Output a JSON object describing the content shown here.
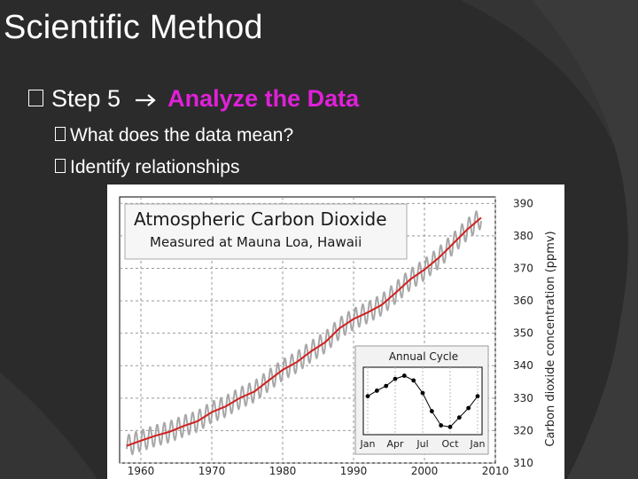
{
  "slide": {
    "title": "Scientific Method",
    "step_prefix": "Step 5",
    "arrow_icon": "right-arrow",
    "step_highlight": "Analyze the Data",
    "accent_color": "#e020d8",
    "sub_bullets": [
      "What does the data mean?",
      "Identify relationships"
    ]
  },
  "chart_data": [
    {
      "type": "line",
      "title": "Atmospheric Carbon Dioxide",
      "subtitle": "Measured at Mauna Loa, Hawaii",
      "ylabel": "Carbon dioxide concentration (ppmv)",
      "xlim": [
        1957,
        2010
      ],
      "ylim": [
        310,
        392
      ],
      "xticks": [
        "1960",
        "1970",
        "1980",
        "1990",
        "2000",
        "2010"
      ],
      "yticks": [
        "310",
        "320",
        "330",
        "340",
        "350",
        "360",
        "370",
        "380",
        "390"
      ],
      "grid": true,
      "series": [
        {
          "color": "#d02020",
          "x": [
            1958,
            1960,
            1962,
            1964,
            1966,
            1968,
            1970,
            1972,
            1974,
            1976,
            1978,
            1980,
            1982,
            1984,
            1986,
            1988,
            1990,
            1992,
            1994,
            1996,
            1998,
            2000,
            2002,
            2004,
            2006,
            2008
          ],
          "y": [
            315.3,
            316.9,
            318.4,
            319.6,
            321.4,
            322.9,
            325.7,
            327.5,
            330.1,
            332.0,
            335.4,
            338.7,
            341.1,
            344.4,
            347.2,
            351.5,
            354.4,
            356.4,
            358.8,
            362.6,
            366.6,
            369.6,
            373.2,
            377.5,
            381.9,
            385.6
          ]
        },
        {
          "color": "#a8a8a8",
          "seasonal_amplitude": 3.2
        }
      ]
    },
    {
      "type": "line",
      "title": "Annual Cycle",
      "xticks": [
        "Jan",
        "Apr",
        "Jul",
        "Oct",
        "Jan"
      ],
      "series": [
        {
          "color": "#000000",
          "values": [
            0.6,
            1.3,
            1.9,
            2.8,
            3.2,
            2.6,
            1.0,
            -1.3,
            -3.1,
            -3.3,
            -2.1,
            -0.9,
            0.6
          ]
        }
      ]
    }
  ]
}
